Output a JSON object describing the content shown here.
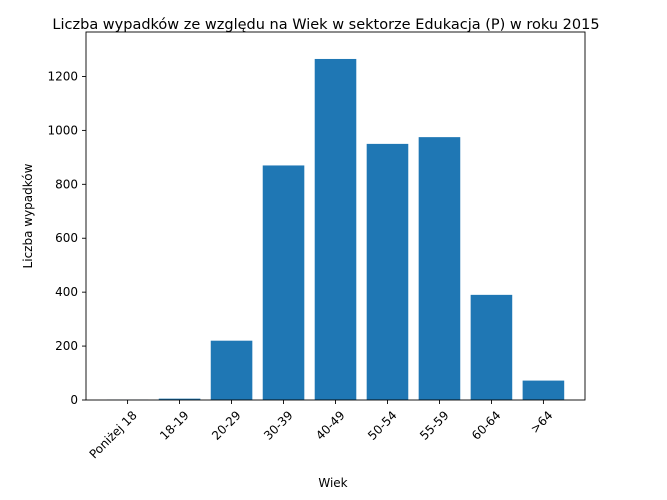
{
  "chart_data": {
    "type": "bar",
    "title": "Liczba wypadków ze względu na Wiek w sektorze Edukacja  (P)   w roku 2015",
    "xlabel": "Wiek",
    "ylabel": "Liczba wypadków",
    "categories": [
      "Poniżej 18",
      "18-19",
      "20-29",
      "30-39",
      "40-49",
      "50-54",
      "55-59",
      "60-64",
      ">64"
    ],
    "values": [
      1,
      5,
      220,
      870,
      1265,
      950,
      975,
      390,
      72
    ],
    "ylim": [
      0,
      1365
    ],
    "yticks": [
      0,
      200,
      400,
      600,
      800,
      1000,
      1200
    ],
    "bar_color": "#1f77b4",
    "grid": false,
    "legend": "none"
  }
}
